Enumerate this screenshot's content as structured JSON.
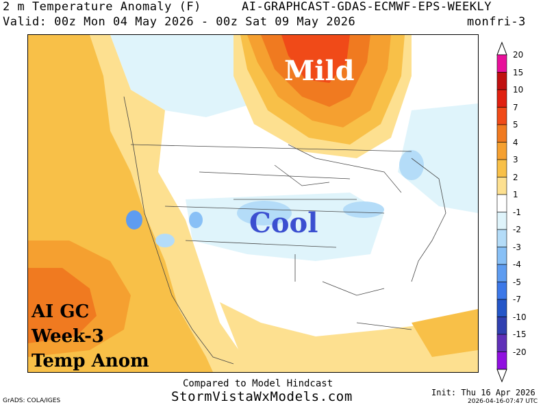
{
  "header": {
    "title_left": "2 m Temperature Anomaly (F)",
    "title_right": "AI-GRAPHCAST-GDAS-ECMWF-EPS-WEEKLY",
    "valid": "Valid: 00z Mon 04 May 2026 - 00z Sat 09 May 2026",
    "product": "monfri-3"
  },
  "map": {
    "label_mild": "Mild",
    "label_cool": "Cool",
    "label_ai_1": "AI GC",
    "label_ai_2": "Week-3",
    "label_ai_3": "Temp Anom"
  },
  "colorbar": {
    "labels": [
      "20",
      "15",
      "10",
      "7",
      "5",
      "4",
      "3",
      "2",
      "1",
      "-1",
      "-2",
      "-3",
      "-4",
      "-5",
      "-7",
      "-10",
      "-15",
      "-20"
    ],
    "colors": [
      "#e8109a",
      "#c01010",
      "#e02010",
      "#f04a18",
      "#f07a20",
      "#f5a030",
      "#f8c048",
      "#fde090",
      "#ffffff",
      "#dff4fb",
      "#b4dcf8",
      "#88c0f6",
      "#5e9cf0",
      "#3c78e8",
      "#2456c8",
      "#3040b0",
      "#6030b8",
      "#9010e0"
    ]
  },
  "footer": {
    "compared": "Compared to Model Hindcast",
    "site": "StormVistaWxModels.com",
    "grads": "GrADS: COLA/IGES",
    "init": "Init: Thu 16 Apr 2026",
    "timestamp": "2026-04-16-07:47 UTC"
  }
}
